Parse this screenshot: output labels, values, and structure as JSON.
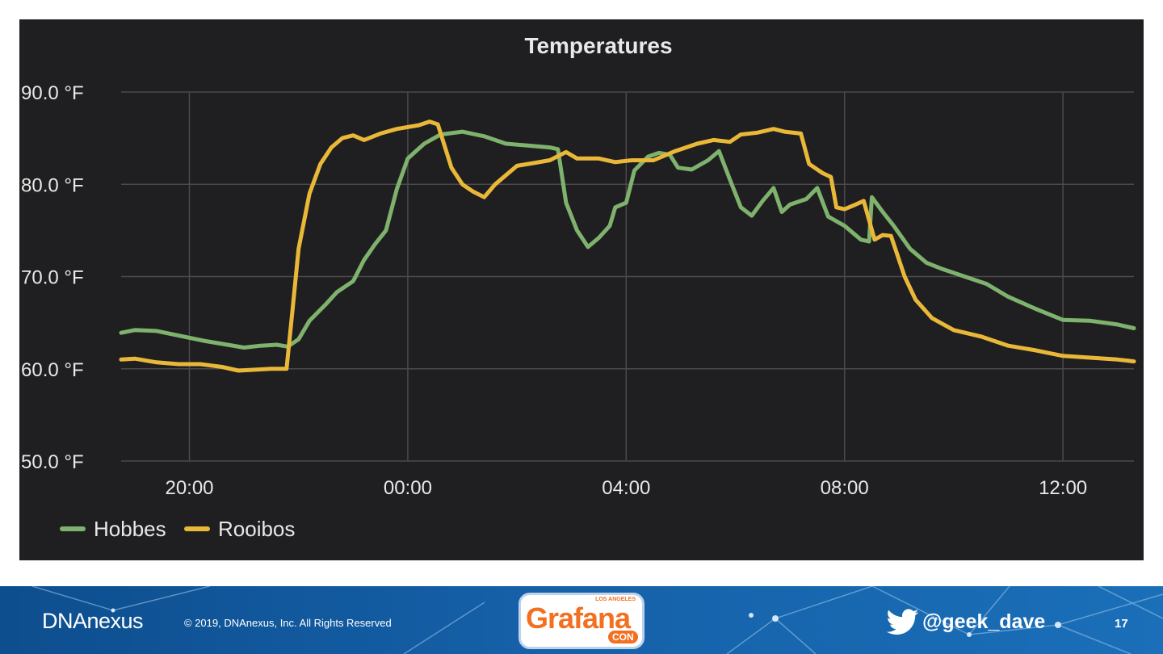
{
  "chart_data": {
    "type": "line",
    "title": "Temperatures",
    "xlabel": "",
    "ylabel": "",
    "x_ticks": [
      "20:00",
      "00:00",
      "04:00",
      "08:00",
      "12:00"
    ],
    "y_ticks": [
      "90.0 °F",
      "80.0 °F",
      "70.0 °F",
      "60.0 °F",
      "50.0 °F"
    ],
    "ylim": [
      50,
      90
    ],
    "xlim_hours": [
      18.75,
      37.3
    ],
    "grid": true,
    "legend_position": "bottom-left",
    "series": [
      {
        "name": "Hobbes",
        "color": "#7eb26d",
        "points": [
          [
            18.75,
            63.9
          ],
          [
            19.0,
            64.2
          ],
          [
            19.4,
            64.1
          ],
          [
            19.8,
            63.6
          ],
          [
            20.3,
            63.0
          ],
          [
            20.7,
            62.6
          ],
          [
            21.0,
            62.3
          ],
          [
            21.3,
            62.5
          ],
          [
            21.6,
            62.6
          ],
          [
            21.8,
            62.4
          ],
          [
            22.0,
            63.2
          ],
          [
            22.2,
            65.2
          ],
          [
            22.5,
            67.0
          ],
          [
            22.7,
            68.3
          ],
          [
            23.0,
            69.5
          ],
          [
            23.2,
            71.8
          ],
          [
            23.4,
            73.5
          ],
          [
            23.6,
            75.0
          ],
          [
            23.8,
            79.5
          ],
          [
            24.0,
            82.8
          ],
          [
            24.3,
            84.4
          ],
          [
            24.6,
            85.4
          ],
          [
            25.0,
            85.7
          ],
          [
            25.4,
            85.2
          ],
          [
            25.8,
            84.4
          ],
          [
            26.2,
            84.2
          ],
          [
            26.6,
            84.0
          ],
          [
            26.75,
            83.8
          ],
          [
            26.9,
            78.0
          ],
          [
            27.1,
            75.0
          ],
          [
            27.3,
            73.2
          ],
          [
            27.5,
            74.2
          ],
          [
            27.7,
            75.5
          ],
          [
            27.8,
            77.5
          ],
          [
            28.0,
            78.0
          ],
          [
            28.15,
            81.5
          ],
          [
            28.4,
            83.0
          ],
          [
            28.6,
            83.4
          ],
          [
            28.8,
            83.2
          ],
          [
            28.95,
            81.8
          ],
          [
            29.2,
            81.6
          ],
          [
            29.5,
            82.6
          ],
          [
            29.7,
            83.6
          ],
          [
            29.9,
            80.5
          ],
          [
            30.1,
            77.5
          ],
          [
            30.3,
            76.6
          ],
          [
            30.5,
            78.2
          ],
          [
            30.7,
            79.6
          ],
          [
            30.85,
            77.0
          ],
          [
            31.0,
            77.8
          ],
          [
            31.3,
            78.4
          ],
          [
            31.5,
            79.6
          ],
          [
            31.7,
            76.5
          ],
          [
            32.0,
            75.5
          ],
          [
            32.3,
            74.0
          ],
          [
            32.45,
            73.8
          ],
          [
            32.5,
            78.6
          ],
          [
            32.7,
            77.0
          ],
          [
            32.9,
            75.5
          ],
          [
            33.2,
            73.0
          ],
          [
            33.5,
            71.5
          ],
          [
            33.8,
            70.8
          ],
          [
            34.2,
            70.0
          ],
          [
            34.6,
            69.2
          ],
          [
            35.0,
            67.8
          ],
          [
            35.5,
            66.5
          ],
          [
            36.0,
            65.3
          ],
          [
            36.5,
            65.2
          ],
          [
            37.0,
            64.8
          ],
          [
            37.3,
            64.4
          ]
        ]
      },
      {
        "name": "Rooibos",
        "color": "#eab839",
        "points": [
          [
            18.75,
            61.0
          ],
          [
            19.0,
            61.1
          ],
          [
            19.4,
            60.7
          ],
          [
            19.8,
            60.5
          ],
          [
            20.2,
            60.5
          ],
          [
            20.6,
            60.2
          ],
          [
            20.9,
            59.8
          ],
          [
            21.2,
            59.9
          ],
          [
            21.5,
            60.0
          ],
          [
            21.78,
            60.0
          ],
          [
            21.9,
            67.0
          ],
          [
            22.0,
            73.0
          ],
          [
            22.2,
            79.0
          ],
          [
            22.4,
            82.2
          ],
          [
            22.6,
            84.0
          ],
          [
            22.8,
            85.0
          ],
          [
            23.0,
            85.3
          ],
          [
            23.2,
            84.8
          ],
          [
            23.5,
            85.5
          ],
          [
            23.8,
            86.0
          ],
          [
            24.2,
            86.4
          ],
          [
            24.4,
            86.8
          ],
          [
            24.55,
            86.5
          ],
          [
            24.8,
            81.8
          ],
          [
            25.0,
            80.0
          ],
          [
            25.2,
            79.2
          ],
          [
            25.4,
            78.6
          ],
          [
            25.6,
            80.0
          ],
          [
            25.8,
            81.0
          ],
          [
            26.0,
            82.0
          ],
          [
            26.3,
            82.3
          ],
          [
            26.6,
            82.6
          ],
          [
            26.9,
            83.5
          ],
          [
            27.1,
            82.8
          ],
          [
            27.5,
            82.8
          ],
          [
            27.8,
            82.4
          ],
          [
            28.1,
            82.6
          ],
          [
            28.5,
            82.6
          ],
          [
            28.9,
            83.6
          ],
          [
            29.3,
            84.4
          ],
          [
            29.6,
            84.8
          ],
          [
            29.9,
            84.6
          ],
          [
            30.1,
            85.4
          ],
          [
            30.4,
            85.6
          ],
          [
            30.7,
            86.0
          ],
          [
            30.9,
            85.7
          ],
          [
            31.2,
            85.5
          ],
          [
            31.35,
            82.2
          ],
          [
            31.6,
            81.2
          ],
          [
            31.75,
            80.8
          ],
          [
            31.85,
            77.5
          ],
          [
            32.0,
            77.3
          ],
          [
            32.2,
            77.8
          ],
          [
            32.35,
            78.2
          ],
          [
            32.55,
            74.0
          ],
          [
            32.7,
            74.5
          ],
          [
            32.85,
            74.4
          ],
          [
            33.1,
            70.0
          ],
          [
            33.3,
            67.5
          ],
          [
            33.6,
            65.5
          ],
          [
            34.0,
            64.2
          ],
          [
            34.5,
            63.5
          ],
          [
            35.0,
            62.5
          ],
          [
            35.5,
            62.0
          ],
          [
            36.0,
            61.4
          ],
          [
            36.5,
            61.2
          ],
          [
            37.0,
            61.0
          ],
          [
            37.3,
            60.8
          ]
        ]
      }
    ]
  },
  "footer": {
    "company_logo": "DNAnexus",
    "copyright": "© 2019, DNAnexus, Inc. All Rights Reserved",
    "conference_logo_text": "Grafana",
    "conference_logo_top": "LOS ANGELES",
    "conference_logo_bottom": "CON",
    "twitter_handle": "@geek_dave",
    "page_number": "17"
  }
}
